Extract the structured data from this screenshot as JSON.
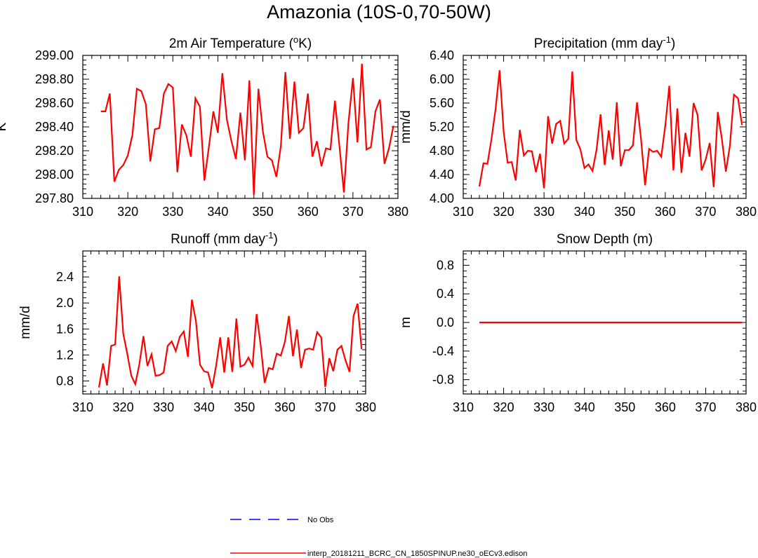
{
  "figure": {
    "title": "Amazonia (10S-0,70-50W)",
    "line_color": "#ff0000",
    "obs_color": "#0000ff"
  },
  "legend": {
    "obs_label": "No Obs",
    "model_label": "interp_20181211_BCRC_CN_1850SPINUP.ne30_oECv3.edison"
  },
  "chart_data": [
    {
      "type": "line",
      "title_main": "2m Air Temperature (",
      "title_sup": "o",
      "title_tail": "K)",
      "ylabel": "K",
      "xlim": [
        310,
        380
      ],
      "ylim": [
        297.8,
        299.0
      ],
      "xticks": [
        "310",
        "320",
        "330",
        "340",
        "350",
        "360",
        "370",
        "380"
      ],
      "yticks": [
        "297.80",
        "298.00",
        "298.20",
        "298.40",
        "298.60",
        "298.80",
        "299.00"
      ],
      "series": [
        {
          "x_start": 314,
          "values": [
            298.53,
            298.53,
            298.68,
            297.94,
            298.04,
            298.08,
            298.16,
            298.33,
            298.72,
            298.7,
            298.59,
            298.11,
            298.38,
            298.39,
            298.68,
            298.76,
            298.73,
            298.02,
            298.42,
            298.33,
            298.15,
            298.64,
            298.57,
            297.95,
            298.23,
            298.53,
            298.35,
            298.85,
            298.46,
            298.28,
            298.13,
            298.52,
            298.12,
            298.79,
            297.83,
            298.72,
            298.36,
            298.15,
            298.12,
            297.98,
            298.24,
            298.86,
            298.3,
            298.78,
            298.35,
            298.39,
            298.68,
            298.15,
            298.28,
            298.07,
            298.22,
            298.21,
            298.62,
            298.24,
            297.85,
            298.43,
            298.81,
            298.27,
            298.93,
            298.21,
            298.23,
            298.53,
            298.63,
            298.09,
            298.22,
            298.41
          ]
        }
      ]
    },
    {
      "type": "line",
      "title_main": "Precipitation (mm day",
      "title_sup": "-1",
      "title_tail": ")",
      "ylabel": "mm/d",
      "xlim": [
        310,
        380
      ],
      "ylim": [
        4.0,
        6.4
      ],
      "xticks": [
        "310",
        "320",
        "330",
        "340",
        "350",
        "360",
        "370",
        "380"
      ],
      "yticks": [
        "4.00",
        "4.40",
        "4.80",
        "5.20",
        "5.60",
        "6.00",
        "6.40"
      ],
      "series": [
        {
          "x_start": 314,
          "values": [
            4.2,
            4.59,
            4.58,
            5.0,
            5.5,
            6.15,
            5.12,
            4.6,
            4.61,
            4.3,
            5.15,
            4.72,
            4.8,
            4.79,
            4.44,
            4.75,
            4.17,
            5.38,
            4.92,
            5.25,
            5.3,
            4.92,
            5.0,
            6.13,
            4.98,
            4.82,
            4.51,
            4.57,
            4.46,
            4.82,
            5.41,
            4.56,
            5.14,
            4.65,
            5.61,
            4.54,
            4.81,
            4.81,
            4.89,
            5.61,
            5.0,
            4.22,
            4.83,
            4.78,
            4.8,
            4.7,
            5.22,
            5.89,
            4.47,
            5.51,
            4.43,
            5.1,
            4.7,
            5.6,
            5.4,
            4.47,
            4.65,
            4.93,
            4.19,
            5.45,
            5.0,
            4.45,
            4.89,
            5.74,
            5.68,
            5.23
          ]
        }
      ]
    },
    {
      "type": "line",
      "title_main": "Runoff (mm day",
      "title_sup": "-1",
      "title_tail": ")",
      "ylabel": "mm/d",
      "xlim": [
        310,
        380
      ],
      "ylim": [
        0.6,
        2.8
      ],
      "xticks": [
        "310",
        "320",
        "330",
        "340",
        "350",
        "360",
        "370",
        "380"
      ],
      "yticks": [
        "0.8",
        "1.2",
        "1.6",
        "2.0",
        "2.4"
      ],
      "ytick_values": [
        0.8,
        1.2,
        1.6,
        2.0,
        2.4
      ],
      "series": [
        {
          "x_start": 314,
          "values": [
            0.7,
            1.07,
            0.73,
            1.34,
            1.36,
            2.41,
            1.53,
            1.22,
            0.88,
            0.75,
            1.06,
            1.49,
            1.03,
            1.21,
            0.88,
            0.89,
            0.93,
            1.34,
            1.41,
            1.26,
            1.48,
            1.56,
            1.17,
            2.05,
            1.72,
            1.05,
            0.95,
            0.93,
            0.69,
            1.04,
            1.47,
            0.93,
            1.47,
            0.94,
            1.76,
            1.02,
            1.05,
            1.16,
            1.03,
            1.83,
            1.36,
            0.77,
            1.0,
            0.98,
            1.22,
            1.19,
            1.4,
            1.8,
            1.18,
            1.59,
            1.0,
            1.28,
            1.3,
            1.28,
            1.55,
            1.47,
            0.71,
            1.15,
            0.95,
            1.28,
            1.34,
            1.12,
            0.94,
            1.8,
            1.99,
            1.29
          ]
        }
      ]
    },
    {
      "type": "line",
      "title_main": "Snow Depth (m)",
      "title_sup": "",
      "title_tail": "",
      "ylabel": "m",
      "xlim": [
        310,
        380
      ],
      "ylim": [
        -1.0,
        1.0
      ],
      "xticks": [
        "310",
        "320",
        "330",
        "340",
        "350",
        "360",
        "370",
        "380"
      ],
      "yticks": [
        "-0.8",
        "-0.4",
        "0.0",
        "0.4",
        "0.8"
      ],
      "ytick_values": [
        -0.8,
        -0.4,
        0.0,
        0.4,
        0.8
      ],
      "series": [
        {
          "x_start": 314,
          "x_end": 379,
          "constant": 0.0
        }
      ]
    }
  ]
}
